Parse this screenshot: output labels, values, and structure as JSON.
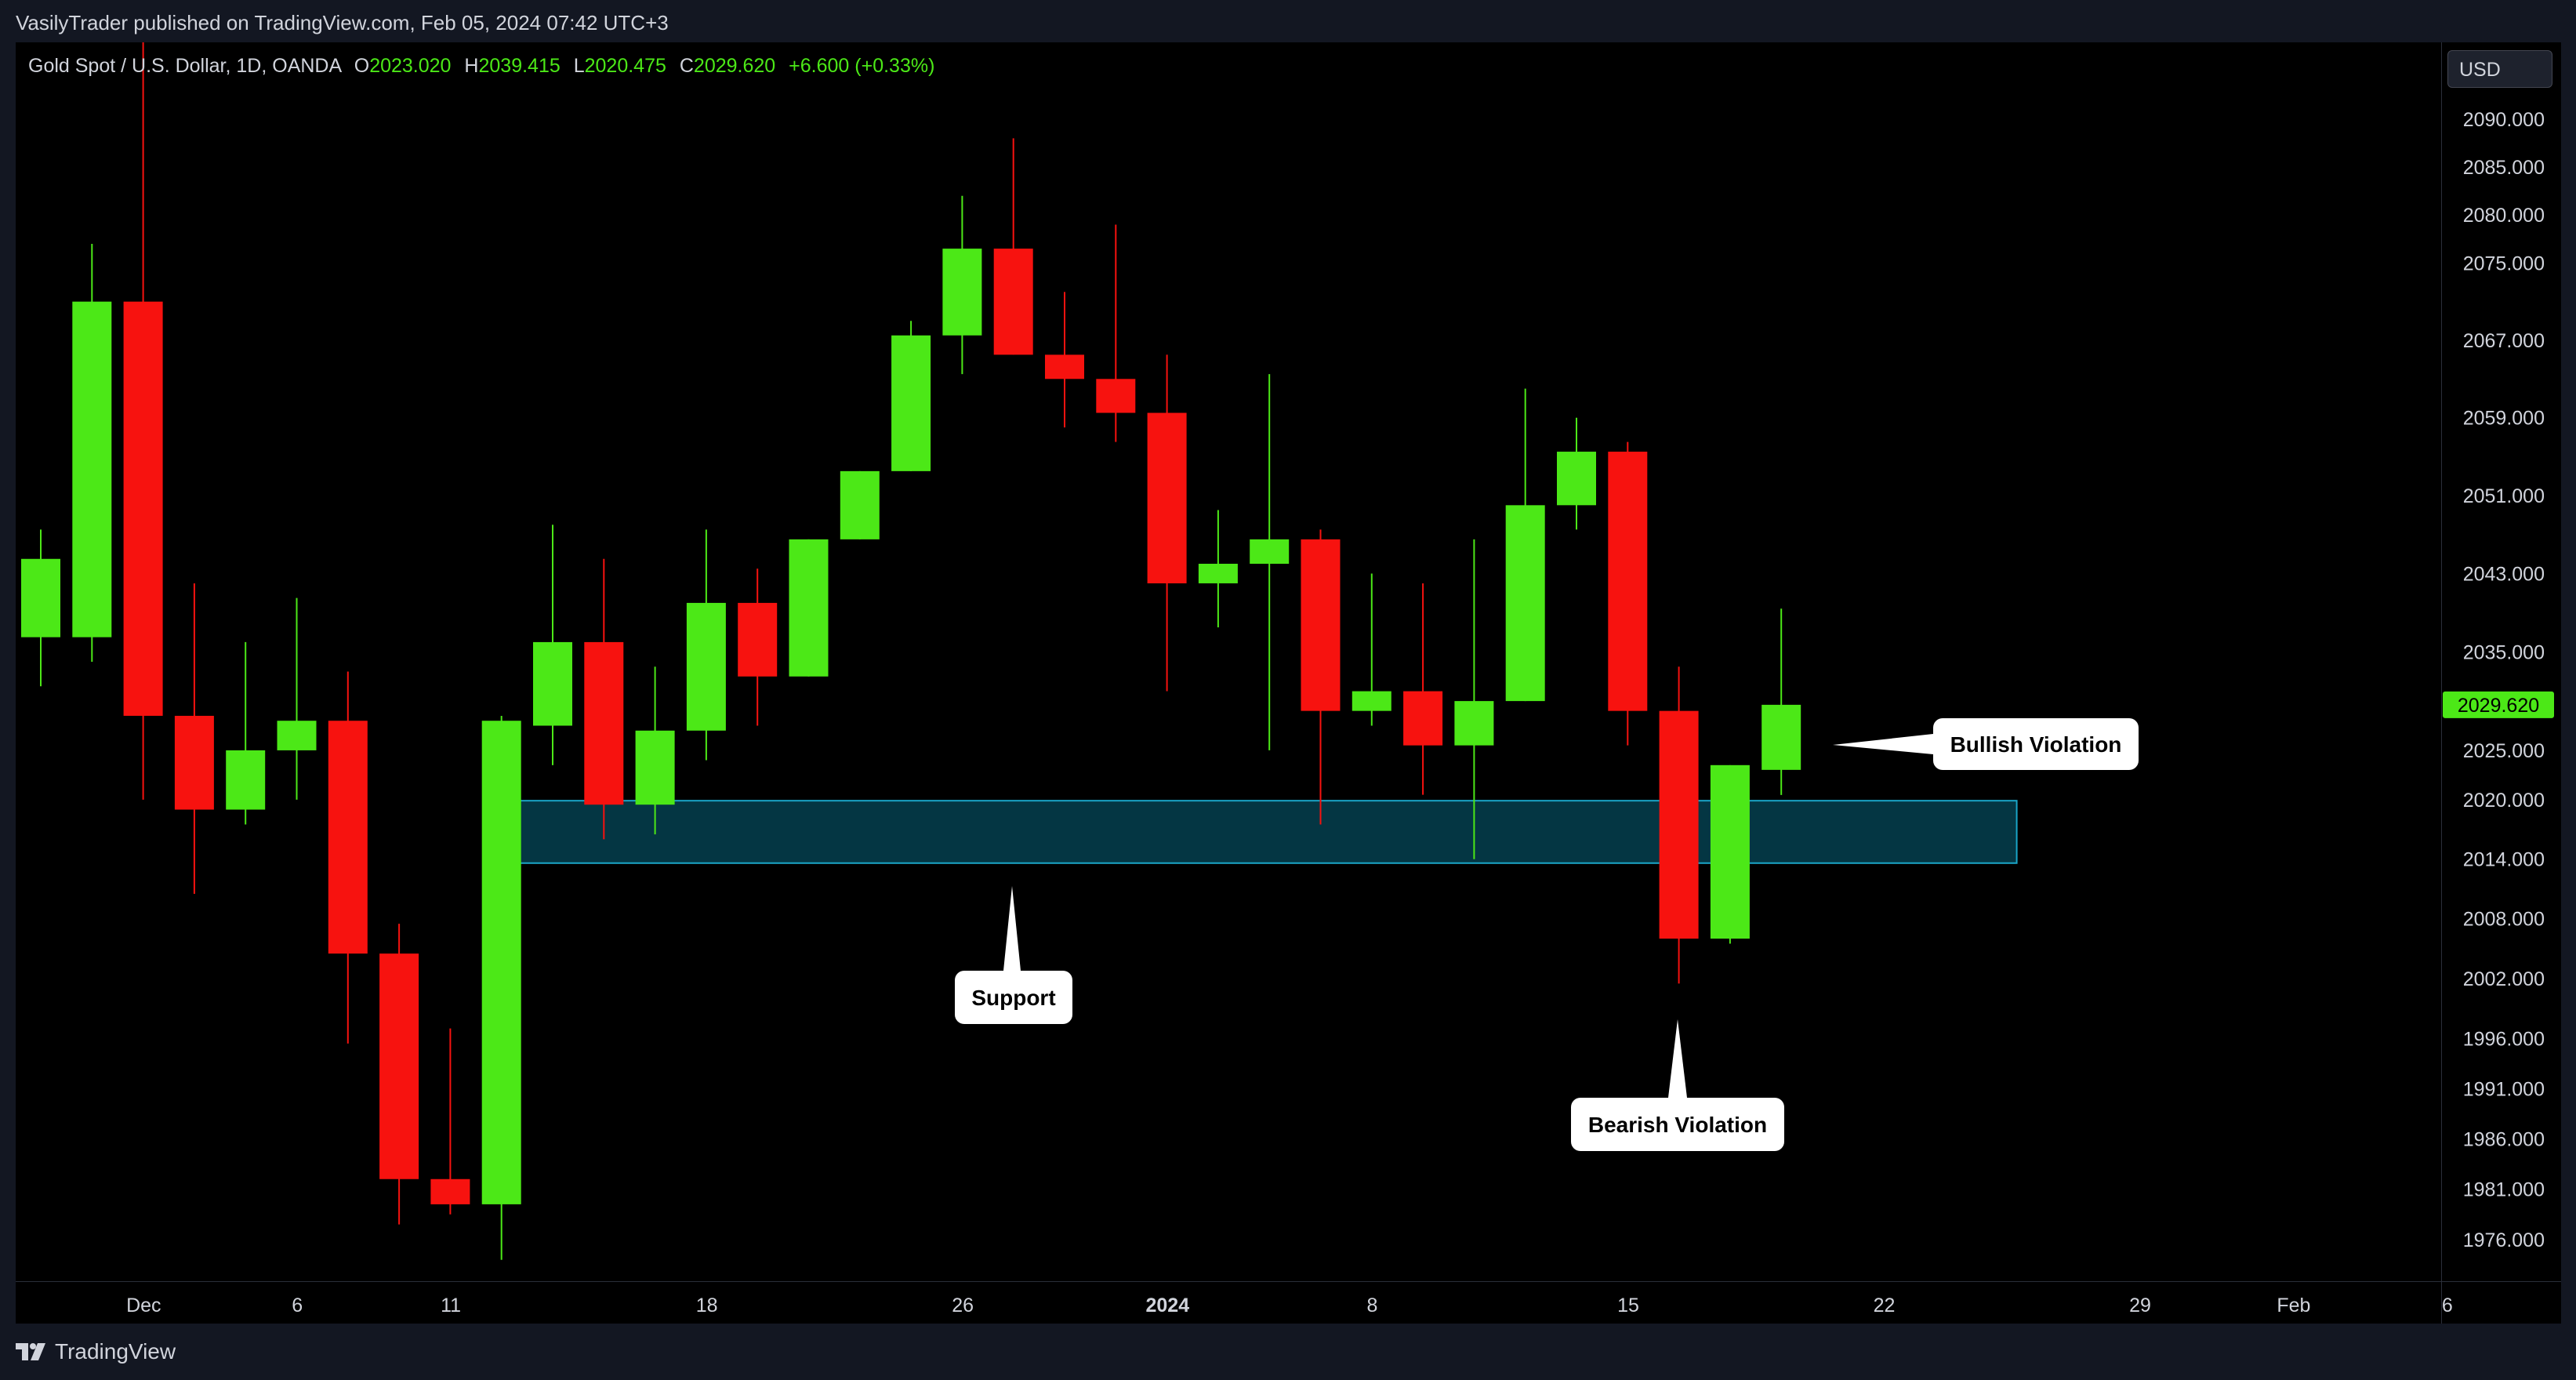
{
  "header": {
    "published": "VasilyTrader published on TradingView.com, Feb 05, 2024 07:42 UTC+3"
  },
  "legend": {
    "symbol": "Gold Spot / U.S. Dollar, 1D, OANDA",
    "o_label": "O",
    "o_value": "2023.020",
    "h_label": "H",
    "h_value": "2039.415",
    "l_label": "L",
    "l_value": "2020.475",
    "c_label": "C",
    "c_value": "2029.620",
    "change": "+6.600 (+0.33%)"
  },
  "currency": "USD",
  "footer": {
    "brand": "TradingView"
  },
  "colors": {
    "up": "#4ce817",
    "down": "#f7120f",
    "zone_fill": "#06485a",
    "zone_border": "#1aa6c8",
    "price_tag": "#4ce817"
  },
  "chart_data": {
    "type": "candlestick",
    "symbol": "XAUUSD",
    "interval": "1D",
    "y_axis": {
      "scale": "log",
      "range": [
        1972,
        2100
      ],
      "ticks": [
        "2090.000",
        "2085.000",
        "2080.000",
        "2075.000",
        "2067.000",
        "2059.000",
        "2051.000",
        "2043.000",
        "2035.000",
        "2025.000",
        "2020.000",
        "2014.000",
        "2008.000",
        "2002.000",
        "1996.000",
        "1991.000",
        "1986.000",
        "1981.000",
        "1976.000"
      ]
    },
    "x_axis": {
      "labels": [
        {
          "label": "Dec",
          "index": 1
        },
        {
          "label": "6",
          "index": 4
        },
        {
          "label": "11",
          "index": 7
        },
        {
          "label": "18",
          "index": 12
        },
        {
          "label": "26",
          "index": 17
        },
        {
          "label": "2024",
          "index": 21
        },
        {
          "label": "8",
          "index": 25
        },
        {
          "label": "15",
          "index": 30
        },
        {
          "label": "22",
          "index": 35
        },
        {
          "label": "29",
          "index": 40
        },
        {
          "label": "Feb",
          "index": 43
        },
        {
          "label": "6",
          "index": 46
        }
      ]
    },
    "candles": [
      {
        "o": 2036.5,
        "h": 2047.5,
        "l": 2031.5,
        "c": 2044.5
      },
      {
        "o": 2036.5,
        "h": 2077.0,
        "l": 2034.0,
        "c": 2071.0
      },
      {
        "o": 2071.0,
        "h": 2110.0,
        "l": 2020.0,
        "c": 2028.5
      },
      {
        "o": 2028.5,
        "h": 2042.0,
        "l": 2010.5,
        "c": 2019.0
      },
      {
        "o": 2019.0,
        "h": 2036.0,
        "l": 2017.5,
        "c": 2025.0
      },
      {
        "o": 2025.0,
        "h": 2040.5,
        "l": 2020.0,
        "c": 2028.0
      },
      {
        "o": 2028.0,
        "h": 2033.0,
        "l": 1995.5,
        "c": 2004.5
      },
      {
        "o": 2004.5,
        "h": 2007.5,
        "l": 1977.5,
        "c": 1982.0
      },
      {
        "o": 1982.0,
        "h": 1997.0,
        "l": 1978.5,
        "c": 1979.5
      },
      {
        "o": 1979.5,
        "h": 2028.5,
        "l": 1974.0,
        "c": 2028.0
      },
      {
        "o": 2027.5,
        "h": 2048.0,
        "l": 2023.5,
        "c": 2036.0
      },
      {
        "o": 2036.0,
        "h": 2044.5,
        "l": 2016.0,
        "c": 2019.5
      },
      {
        "o": 2019.5,
        "h": 2033.5,
        "l": 2016.5,
        "c": 2027.0
      },
      {
        "o": 2027.0,
        "h": 2047.5,
        "l": 2024.0,
        "c": 2040.0
      },
      {
        "o": 2040.0,
        "h": 2043.5,
        "l": 2027.5,
        "c": 2032.5
      },
      {
        "o": 2032.5,
        "h": 2046.5,
        "l": 2032.5,
        "c": 2046.5
      },
      {
        "o": 2046.5,
        "h": 2053.5,
        "l": 2046.5,
        "c": 2053.5
      },
      {
        "o": 2053.5,
        "h": 2069.0,
        "l": 2053.5,
        "c": 2067.5
      },
      {
        "o": 2067.5,
        "h": 2082.0,
        "l": 2063.5,
        "c": 2076.5
      },
      {
        "o": 2076.5,
        "h": 2088.0,
        "l": 2065.5,
        "c": 2065.5
      },
      {
        "o": 2065.5,
        "h": 2072.0,
        "l": 2058.0,
        "c": 2063.0
      },
      {
        "o": 2063.0,
        "h": 2079.0,
        "l": 2056.5,
        "c": 2059.5
      },
      {
        "o": 2059.5,
        "h": 2065.5,
        "l": 2031.0,
        "c": 2042.0
      },
      {
        "o": 2042.0,
        "h": 2049.5,
        "l": 2037.5,
        "c": 2044.0
      },
      {
        "o": 2044.0,
        "h": 2063.5,
        "l": 2025.0,
        "c": 2046.5
      },
      {
        "o": 2046.5,
        "h": 2047.5,
        "l": 2017.5,
        "c": 2029.0
      },
      {
        "o": 2029.0,
        "h": 2043.0,
        "l": 2027.5,
        "c": 2031.0
      },
      {
        "o": 2031.0,
        "h": 2042.0,
        "l": 2020.5,
        "c": 2025.5
      },
      {
        "o": 2025.5,
        "h": 2046.5,
        "l": 2014.0,
        "c": 2030.0
      },
      {
        "o": 2030.0,
        "h": 2062.0,
        "l": 2030.0,
        "c": 2050.0
      },
      {
        "o": 2050.0,
        "h": 2059.0,
        "l": 2047.5,
        "c": 2055.5
      },
      {
        "o": 2055.5,
        "h": 2056.5,
        "l": 2025.5,
        "c": 2029.0
      },
      {
        "o": 2029.0,
        "h": 2033.5,
        "l": 2001.5,
        "c": 2006.0
      },
      {
        "o": 2006.0,
        "h": 2023.5,
        "l": 2005.5,
        "c": 2023.5
      },
      {
        "o": 2023.02,
        "h": 2039.415,
        "l": 2020.475,
        "c": 2029.62
      }
    ],
    "zones": [
      {
        "label": "",
        "from_index": 8.9,
        "to_index": 38.6,
        "top": 2019.9,
        "bottom": 2013.6
      }
    ],
    "annotations": [
      {
        "text": "Support",
        "pointer": "up"
      },
      {
        "text": "Bearish Violation",
        "pointer": "up"
      },
      {
        "text": "Bullish Violation",
        "pointer": "left"
      }
    ],
    "last_price": "2029.620",
    "grid": false,
    "legend": "top-left"
  }
}
